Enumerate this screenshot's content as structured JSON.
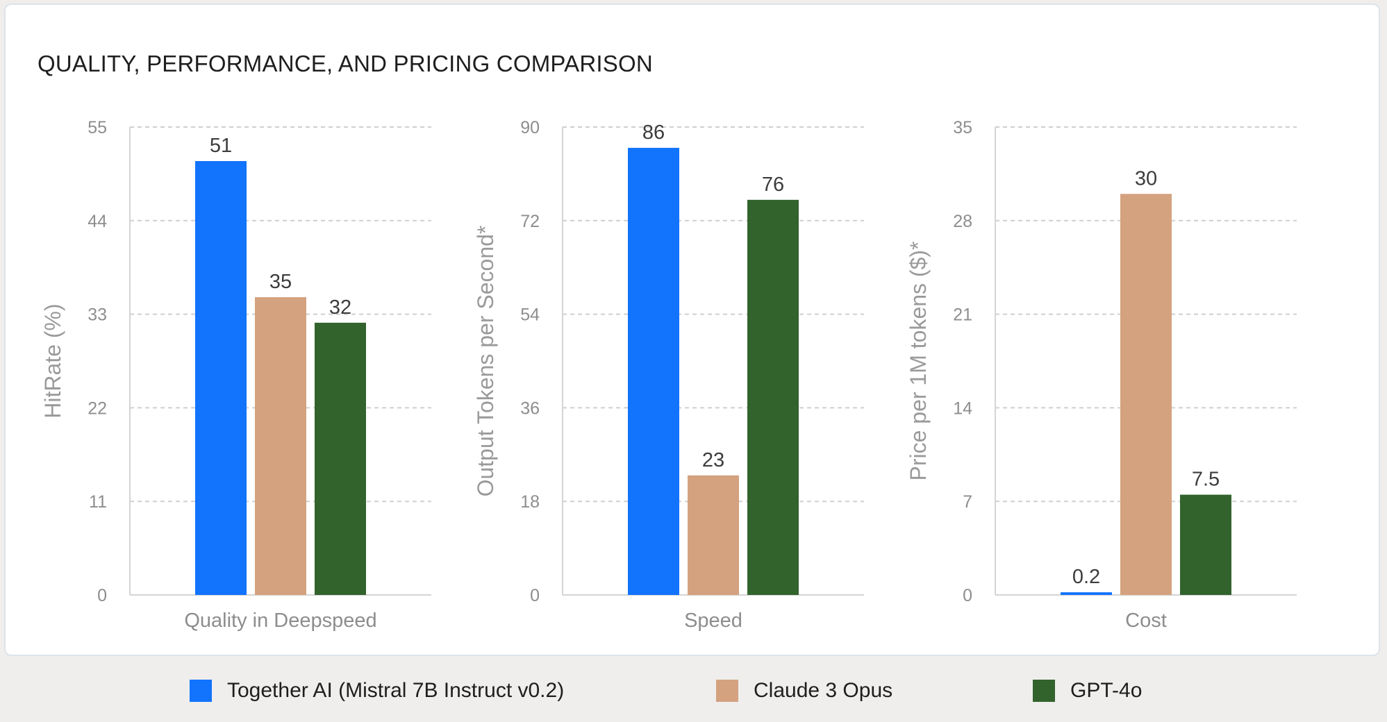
{
  "title": "QUALITY, PERFORMANCE, AND PRICING COMPARISON",
  "chart_data": [
    {
      "type": "bar",
      "name": "quality",
      "categories": [
        "Quality in Deepspeed"
      ],
      "xlabel": "Quality in Deepspeed",
      "ylabel": "HitRate (%)",
      "ylim": [
        0,
        55
      ],
      "yticks": [
        0,
        11,
        22,
        33,
        44,
        55
      ],
      "grid": true,
      "series": [
        {
          "name": "Together AI (Mistral 7B Instruct v0.2)",
          "values": [
            51
          ],
          "labels": [
            "51"
          ]
        },
        {
          "name": "Claude 3 Opus",
          "values": [
            35
          ],
          "labels": [
            "35"
          ]
        },
        {
          "name": "GPT-4o",
          "values": [
            32
          ],
          "labels": [
            "32"
          ]
        }
      ]
    },
    {
      "type": "bar",
      "name": "speed",
      "categories": [
        "Speed"
      ],
      "xlabel": "Speed",
      "ylabel": "Output Tokens per Second*",
      "ylim": [
        0,
        90
      ],
      "yticks": [
        0,
        18,
        36,
        54,
        72,
        90
      ],
      "grid": true,
      "series": [
        {
          "name": "Together AI (Mistral 7B Instruct v0.2)",
          "values": [
            86
          ],
          "labels": [
            "86"
          ]
        },
        {
          "name": "Claude 3 Opus",
          "values": [
            23
          ],
          "labels": [
            "23"
          ]
        },
        {
          "name": "GPT-4o",
          "values": [
            76
          ],
          "labels": [
            "76"
          ]
        }
      ]
    },
    {
      "type": "bar",
      "name": "cost",
      "categories": [
        "Cost"
      ],
      "xlabel": "Cost",
      "ylabel": "Price per 1M tokens ($)*",
      "ylim": [
        0,
        35
      ],
      "yticks": [
        0,
        7,
        14,
        21,
        28,
        35
      ],
      "grid": true,
      "series": [
        {
          "name": "Together AI (Mistral 7B Instruct v0.2)",
          "values": [
            0.2
          ],
          "labels": [
            "0.2"
          ]
        },
        {
          "name": "Claude 3 Opus",
          "values": [
            30
          ],
          "labels": [
            "30"
          ]
        },
        {
          "name": "GPT-4o",
          "values": [
            7.5
          ],
          "labels": [
            "7.5"
          ]
        }
      ]
    }
  ],
  "legend": {
    "position": "bottom",
    "items": [
      {
        "label": "Together AI (Mistral 7B Instruct v0.2)",
        "color": "#1273fc"
      },
      {
        "label": "Claude 3 Opus",
        "color": "#d4a27f"
      },
      {
        "label": "GPT-4o",
        "color": "#32632d"
      }
    ]
  }
}
